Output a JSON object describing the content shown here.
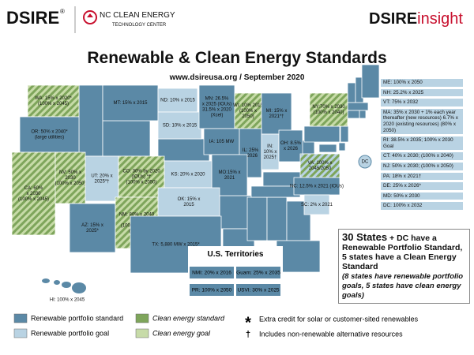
{
  "header": {
    "logo": "DSIRE",
    "logo_mark": "®",
    "partner_name": "NC CLEAN ENERGY",
    "partner_sub": "TECHNOLOGY CENTER",
    "brand_a": "DSIRE",
    "brand_b": "insight"
  },
  "title": "Renewable & Clean Energy Standards",
  "subtitle": "www.dsireusa.org / September 2020",
  "states": [
    {
      "lines": [
        "WA: 15% x 2020*",
        "(100% x 2045)"
      ],
      "color": "#7ea55b",
      "hatch": "#c7dba8"
    },
    {
      "lines": [
        "OR: 50% x 2040*",
        "(large utilities)"
      ],
      "color": "#5b89a6"
    },
    {
      "lines": [
        "CA: 60%",
        "x 2030",
        "(100% x 2045)"
      ],
      "color": "#7ea55b",
      "hatch": "#c7dba8"
    },
    {
      "lines": [
        "NV: 50% x",
        "2030",
        "(100% x 2050)"
      ],
      "color": "#7ea55b",
      "hatch": "#c7dba8"
    },
    {
      "lines": [
        "UT: 20% x",
        "2025*†"
      ],
      "color": "#b9d3e3"
    },
    {
      "lines": [
        "AZ: 15% x",
        "2025*"
      ],
      "color": "#5b89a6"
    },
    {
      "lines": [
        "CO: 30% by 2020",
        "(IOUs) *†",
        "(100% x 2050)"
      ],
      "color": "#7ea55b",
      "hatch": "#c7dba8"
    },
    {
      "lines": [
        "NM: 80% x 2040",
        "(IOUs)",
        "(100% by 2045",
        "(IOUs))"
      ],
      "color": "#7ea55b",
      "hatch": "#c7dba8"
    },
    {
      "lines": [
        "MT: 15% x 2015"
      ],
      "color": "#5b89a6"
    },
    {
      "lines": [
        "ND: 10% x 2015"
      ],
      "color": "#b9d3e3"
    },
    {
      "lines": [
        "SD: 10% x 2015"
      ],
      "color": "#b9d3e3"
    },
    {
      "lines": [
        "MN: 26.5%",
        "x 2025 (IOUs)",
        "31.5% x 2020",
        "(Xcel)"
      ],
      "color": "#5b89a6"
    },
    {
      "lines": [
        "WI: 10% 2015",
        "(100% x",
        "2050)"
      ],
      "color": "#7ea55b",
      "hatch": "#c7dba8"
    },
    {
      "lines": [
        "MI: 15% x",
        "2021*†"
      ],
      "color": "#5b89a6"
    },
    {
      "lines": [
        "IA: 105 MW"
      ],
      "color": "#5b89a6"
    },
    {
      "lines": [
        "IL: 25%",
        "x 2026"
      ],
      "color": "#5b89a6"
    },
    {
      "lines": [
        "IN:",
        "10% x",
        "2025†"
      ],
      "color": "#b9d3e3"
    },
    {
      "lines": [
        "OH: 8.5%",
        "x 2026"
      ],
      "color": "#5b89a6"
    },
    {
      "lines": [
        "MO:15% x",
        "2021"
      ],
      "color": "#5b89a6"
    },
    {
      "lines": [
        "KS: 20% x 2020"
      ],
      "color": "#b9d3e3"
    },
    {
      "lines": [
        "OK: 15% x",
        "2015"
      ],
      "color": "#b9d3e3"
    },
    {
      "lines": [
        "TX: 5,880 MW x 2015*"
      ],
      "color": "#5b89a6"
    },
    {
      "lines": [
        "NY:70% x 2030",
        "(100% x 2040)"
      ],
      "color": "#7ea55b",
      "hatch": "#c7dba8"
    },
    {
      "lines": [
        "VA: 100% x",
        "2045/2050"
      ],
      "color": "#7ea55b",
      "hatch": "#b9d3e3"
    },
    {
      "lines": [
        "NC: 12.5% x 2021 (IOUs)"
      ],
      "color": "#5b89a6"
    },
    {
      "lines": [
        "SC: 2% x 2021"
      ],
      "color": "#b9d3e3"
    },
    {
      "lines": [
        "HI: 100% x 2045"
      ],
      "color": "#5b89a6"
    }
  ],
  "dc_marker": "DC",
  "northeast": [
    "ME: 100% x 2050",
    "NH: 25.2% x 2025",
    "VT: 75% x 2032",
    "MA: 35% x 2030 + 1% each year thereafter (new resources) 6.7% x 2020 (existing resources) (80% x 2050)",
    "RI: 38.5% x 2035; 100% x 2030 Goal",
    "CT: 40% x 2030; (100% x 2040)",
    "NJ: 50% x 2030; (100% x 2050)",
    "PA: 18% x 2021†",
    "DE: 25% x 2026*",
    "MD: 50% x 2030",
    "DC: 100% x 2032"
  ],
  "territories": {
    "title": "U.S. Territories",
    "items": [
      "NMI: 20% x 2016",
      "Guam: 25% x 2035",
      "PR: 100% x 2050",
      "USVI: 30% x 2025"
    ]
  },
  "summary": {
    "lead": "30 States",
    "text": "+ DC have a Renewable Portfolio Standard, 5 states have a Clean Energy Standard",
    "note": "(8 states have renewable portfolio goals, 5 states have clean energy goals)"
  },
  "legend": [
    {
      "label": "Renewable portfolio standard",
      "color": "#5b89a6"
    },
    {
      "label": "Renewable portfolio goal",
      "color": "#b9d3e3"
    },
    {
      "label": "Clean energy standard",
      "color": "#7ea55b"
    },
    {
      "label": "Clean energy goal",
      "color": "#c7dba8"
    }
  ],
  "footnotes": [
    {
      "symbol": "*",
      "text": "Extra credit for solar or customer-sited renewables"
    },
    {
      "symbol": "†",
      "text": "Includes non-renewable alternative resources"
    }
  ]
}
